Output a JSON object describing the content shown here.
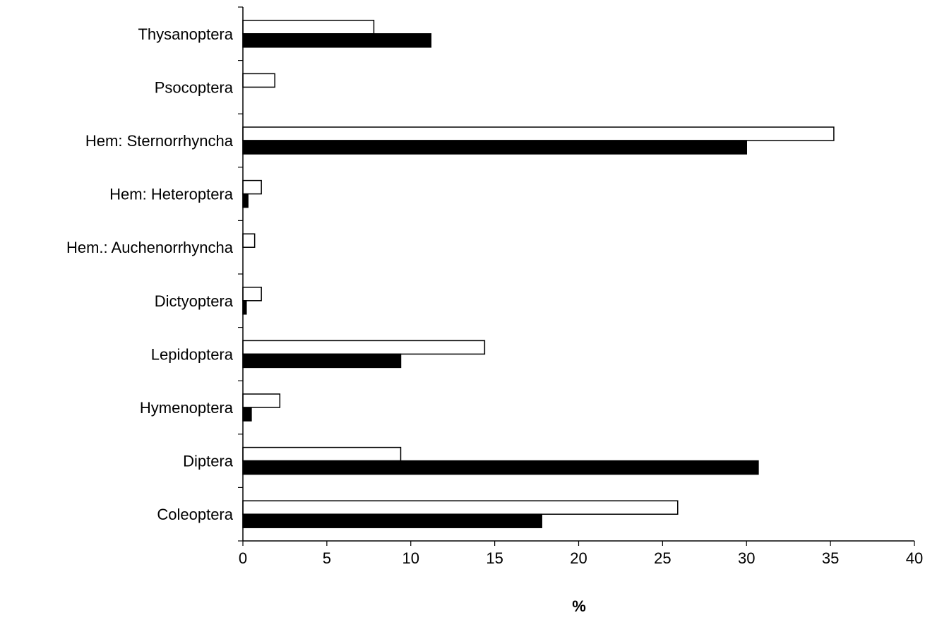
{
  "chart_data": {
    "type": "bar",
    "orientation": "horizontal",
    "categories": [
      "Coleoptera",
      "Diptera",
      "Hymenoptera",
      "Lepidoptera",
      "Dictyoptera",
      "Hem.: Auchenorrhyncha",
      "Hem: Heteroptera",
      "Hem: Sternorrhyncha",
      "Psocoptera",
      "Thysanoptera"
    ],
    "series": [
      {
        "values": [
          25.9,
          9.4,
          2.2,
          14.4,
          1.1,
          0.7,
          1.1,
          35.2,
          1.9,
          7.8
        ],
        "color": "#ffffff"
      },
      {
        "values": [
          17.8,
          30.7,
          0.5,
          9.4,
          0.2,
          0,
          0.3,
          30.0,
          0,
          11.2
        ],
        "color": "#000000"
      }
    ],
    "xlabel": "%",
    "ylabel": "",
    "xlim": [
      0,
      40
    ],
    "xticks": [
      0,
      5,
      10,
      15,
      20,
      25,
      30,
      35,
      40
    ],
    "grid": false,
    "legend": "none"
  }
}
